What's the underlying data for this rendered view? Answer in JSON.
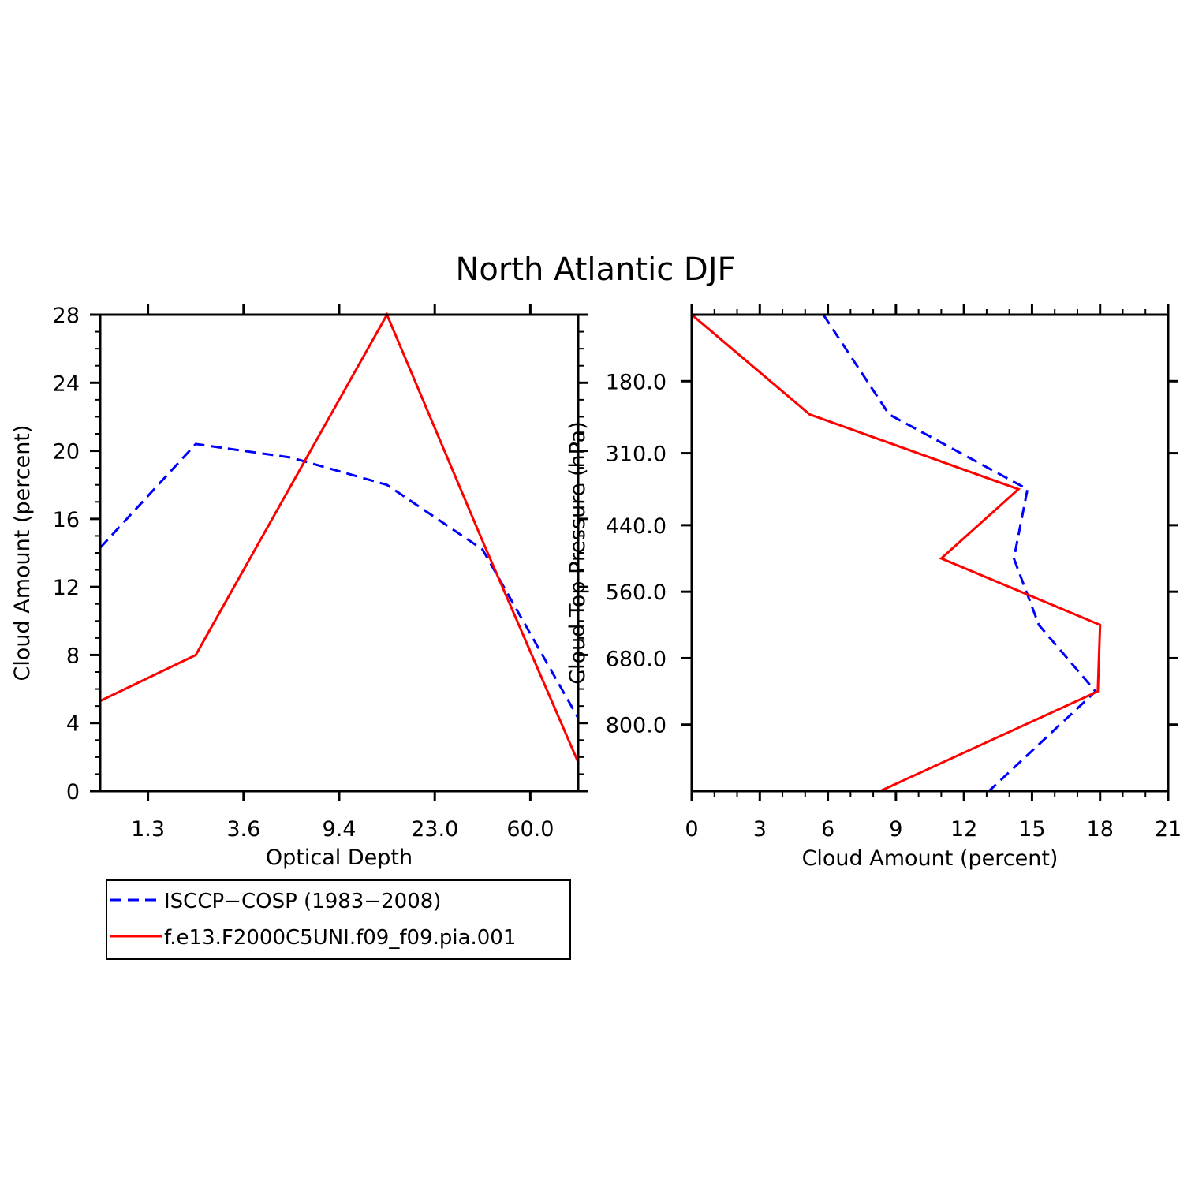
{
  "figure": {
    "title": "North Atlantic DJF"
  },
  "series_styles": {
    "obs": {
      "color": "#0000ff",
      "dashed": true
    },
    "model": {
      "color": "#ff0000",
      "dashed": false
    }
  },
  "legend": {
    "items": [
      {
        "label": "ISCCP−COSP (1983−2008)",
        "series": "obs"
      },
      {
        "label": "f.e13.F2000C5UNI.f09_f09.pia.001",
        "series": "model"
      }
    ]
  },
  "chart_data": [
    {
      "type": "line",
      "title": "",
      "xlabel": "Optical Depth",
      "ylabel": "Cloud Amount (percent)",
      "x_index": [
        0,
        1,
        2,
        3,
        4,
        5
      ],
      "xticks": [
        0.5,
        1.5,
        2.5,
        3.5,
        4.5
      ],
      "xtick_labels": [
        "1.3",
        "3.6",
        "9.4",
        "23.0",
        "60.0"
      ],
      "xlim": [
        0,
        5
      ],
      "ylim": [
        0,
        28
      ],
      "yticks": [
        0,
        4,
        8,
        12,
        16,
        20,
        24,
        28
      ],
      "ytick_labels": [
        "0",
        "4",
        "8",
        "12",
        "16",
        "20",
        "24",
        "28"
      ],
      "series": [
        {
          "name": "ISCCP−COSP (1983−2008)",
          "style": "obs",
          "values": [
            14.3,
            20.4,
            19.6,
            18.0,
            14.2,
            4.3
          ]
        },
        {
          "name": "f.e13.F2000C5UNI.f09_f09.pia.001",
          "style": "model",
          "values": [
            5.3,
            8.0,
            18.0,
            28.0,
            14.7,
            1.7
          ]
        }
      ]
    },
    {
      "type": "line",
      "title": "",
      "xlabel": "Cloud Amount (percent)",
      "ylabel": "Cloud Top Pressure (hPa)",
      "xlim": [
        0,
        21
      ],
      "xticks": [
        0,
        3,
        6,
        9,
        12,
        15,
        18,
        21
      ],
      "xtick_labels": [
        "0",
        "3",
        "6",
        "9",
        "12",
        "15",
        "18",
        "21"
      ],
      "ylim": [
        60,
        920
      ],
      "y_inverted": true,
      "yticks": [
        180,
        310,
        440,
        560,
        680,
        800
      ],
      "ytick_labels": [
        "180.0",
        "310.0",
        "440.0",
        "560.0",
        "680.0",
        "800.0"
      ],
      "pressure_levels": [
        60,
        240,
        375,
        500,
        620,
        740,
        920
      ],
      "series": [
        {
          "name": "ISCCP−COSP (1983−2008)",
          "style": "obs",
          "values": [
            5.8,
            8.7,
            14.8,
            14.2,
            15.3,
            17.8,
            13.1
          ]
        },
        {
          "name": "f.e13.F2000C5UNI.f09_f09.pia.001",
          "style": "model",
          "values": [
            0.0,
            5.2,
            14.4,
            11.0,
            18.0,
            17.9,
            8.3
          ]
        }
      ]
    }
  ]
}
